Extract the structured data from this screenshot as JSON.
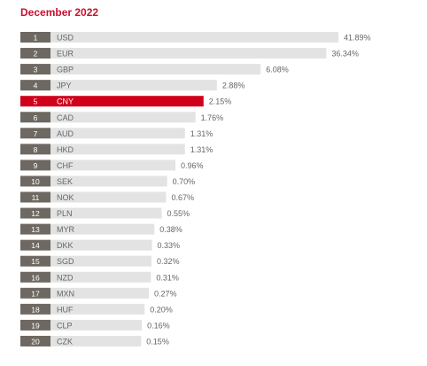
{
  "title": "December 2022",
  "colors": {
    "title": "#c8102e",
    "highlight": "#d0021b",
    "bar": "#e3e3e3",
    "rank_box": "#6e6862",
    "rank_text": "#ffffff",
    "label": "#666666",
    "highlight_label": "#ffffff"
  },
  "chart_data": {
    "type": "bar",
    "orientation": "horizontal",
    "title": "December 2022",
    "xlabel": "",
    "ylabel": "",
    "grid": false,
    "legend": "none",
    "value_suffix": "%",
    "xlim": [
      0,
      41.89
    ],
    "highlight": "CNY",
    "rows": [
      {
        "rank": "1",
        "code": "USD",
        "value": 41.89,
        "label": "41.89%"
      },
      {
        "rank": "2",
        "code": "EUR",
        "value": 36.34,
        "label": "36.34%"
      },
      {
        "rank": "3",
        "code": "GBP",
        "value": 6.08,
        "label": "6.08%"
      },
      {
        "rank": "4",
        "code": "JPY",
        "value": 2.88,
        "label": "2.88%"
      },
      {
        "rank": "5",
        "code": "CNY",
        "value": 2.15,
        "label": "2.15%"
      },
      {
        "rank": "6",
        "code": "CAD",
        "value": 1.76,
        "label": "1.76%"
      },
      {
        "rank": "7",
        "code": "AUD",
        "value": 1.31,
        "label": "1.31%"
      },
      {
        "rank": "8",
        "code": "HKD",
        "value": 1.31,
        "label": "1.31%"
      },
      {
        "rank": "9",
        "code": "CHF",
        "value": 0.96,
        "label": "0.96%"
      },
      {
        "rank": "10",
        "code": "SEK",
        "value": 0.7,
        "label": "0.70%"
      },
      {
        "rank": "11",
        "code": "NOK",
        "value": 0.67,
        "label": "0.67%"
      },
      {
        "rank": "12",
        "code": "PLN",
        "value": 0.55,
        "label": "0.55%"
      },
      {
        "rank": "13",
        "code": "MYR",
        "value": 0.38,
        "label": "0.38%"
      },
      {
        "rank": "14",
        "code": "DKK",
        "value": 0.33,
        "label": "0.33%"
      },
      {
        "rank": "15",
        "code": "SGD",
        "value": 0.32,
        "label": "0.32%"
      },
      {
        "rank": "16",
        "code": "NZD",
        "value": 0.31,
        "label": "0.31%"
      },
      {
        "rank": "17",
        "code": "MXN",
        "value": 0.27,
        "label": "0.27%"
      },
      {
        "rank": "18",
        "code": "HUF",
        "value": 0.2,
        "label": "0.20%"
      },
      {
        "rank": "19",
        "code": "CLP",
        "value": 0.16,
        "label": "0.16%"
      },
      {
        "rank": "20",
        "code": "CZK",
        "value": 0.15,
        "label": "0.15%"
      }
    ]
  }
}
